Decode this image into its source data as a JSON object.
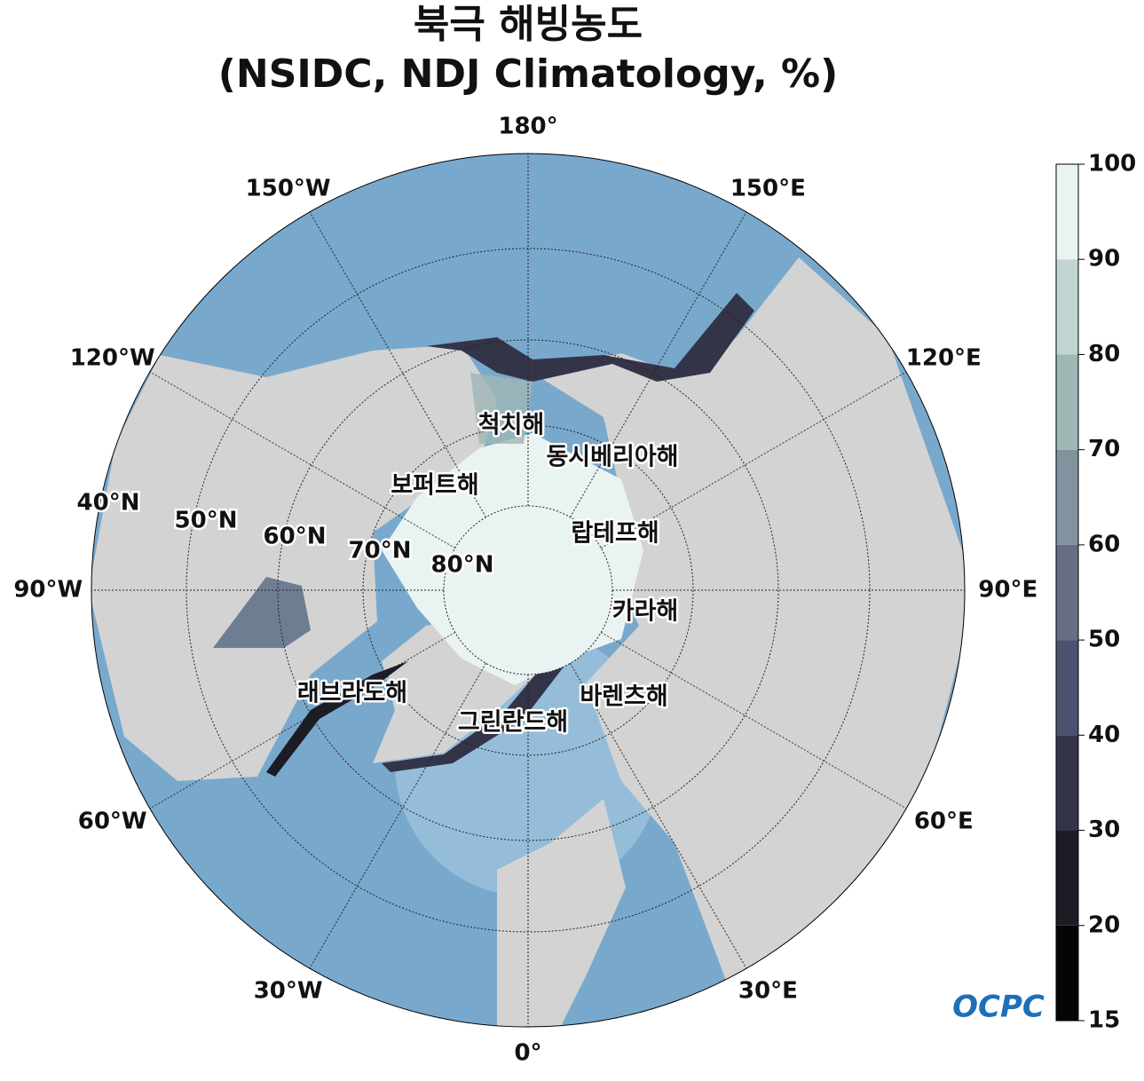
{
  "title": [
    "북극 해빙농도",
    "(NSIDC, NDJ Climatology, %)"
  ],
  "lon_labels": [
    "0°",
    "30°E",
    "60°E",
    "90°E",
    "120°E",
    "150°E",
    "180°",
    "150°W",
    "120°W",
    "90°W",
    "60°W",
    "30°W"
  ],
  "lat_labels": [
    "40°N",
    "50°N",
    "60°N",
    "70°N",
    "80°N"
  ],
  "seas": [
    "척치해",
    "동시베리아해",
    "보퍼트해",
    "랍테프해",
    "카라해",
    "바렌츠해",
    "래브라도해",
    "그린란드해"
  ],
  "colorbar": {
    "levels": [
      15,
      20,
      30,
      40,
      50,
      60,
      70,
      80,
      90,
      100
    ],
    "colors": [
      "#050505",
      "#1c1c24",
      "#343448",
      "#4e5070",
      "#676f86",
      "#82929e",
      "#9fb7b5",
      "#c1d6d3",
      "#e9f3f1"
    ]
  },
  "logo": "OCPC"
}
